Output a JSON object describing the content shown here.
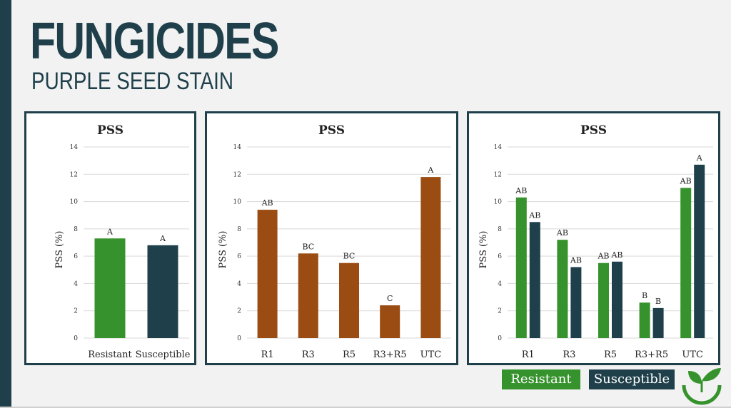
{
  "header": {
    "title": "FUNGICIDES",
    "subtitle": "PURPLE SEED STAIN"
  },
  "colors": {
    "resistant": "#36922c",
    "susceptible": "#1f404b",
    "timing": "#9b4c12",
    "frame": "#1f404b"
  },
  "legend": {
    "resistant": "Resistant",
    "susceptible": "Susceptible"
  },
  "logo_icon": "leaf-sprout-icon",
  "chart_data": [
    {
      "type": "bar",
      "title": "PSS",
      "ylabel": "PSS (%)",
      "ylim": [
        0,
        14
      ],
      "yticks": [
        0,
        2,
        4,
        6,
        8,
        10,
        12,
        14
      ],
      "categories": [
        "Resistant",
        "Susceptible"
      ],
      "series": [
        {
          "values": [
            7.3,
            6.8
          ],
          "labels": [
            "A",
            "A"
          ]
        }
      ],
      "grid": true
    },
    {
      "type": "bar",
      "title": "PSS",
      "ylabel": "PSS (%)",
      "ylim": [
        0,
        14
      ],
      "yticks": [
        0,
        2,
        4,
        6,
        8,
        10,
        12,
        14
      ],
      "categories": [
        "R1",
        "R3",
        "R5",
        "R3+R5",
        "UTC"
      ],
      "series": [
        {
          "values": [
            9.4,
            6.2,
            5.5,
            2.4,
            11.8
          ],
          "labels": [
            "AB",
            "BC",
            "BC",
            "C",
            "A"
          ]
        }
      ],
      "grid": true
    },
    {
      "type": "bar",
      "title": "PSS",
      "ylabel": "PSS (%)",
      "ylim": [
        0,
        14
      ],
      "yticks": [
        0,
        2,
        4,
        6,
        8,
        10,
        12,
        14
      ],
      "categories": [
        "R1",
        "R3",
        "R5",
        "R3+R5",
        "UTC"
      ],
      "series": [
        {
          "name": "Resistant",
          "values": [
            10.3,
            7.2,
            5.5,
            2.6,
            11.0
          ],
          "labels": [
            "AB",
            "AB",
            "AB",
            "B",
            "AB"
          ]
        },
        {
          "name": "Susceptible",
          "values": [
            8.5,
            5.2,
            5.6,
            2.2,
            12.7
          ],
          "labels": [
            "AB",
            "AB",
            "AB",
            "B",
            "A"
          ]
        }
      ],
      "grid": true,
      "legend": "bottom-right"
    }
  ]
}
